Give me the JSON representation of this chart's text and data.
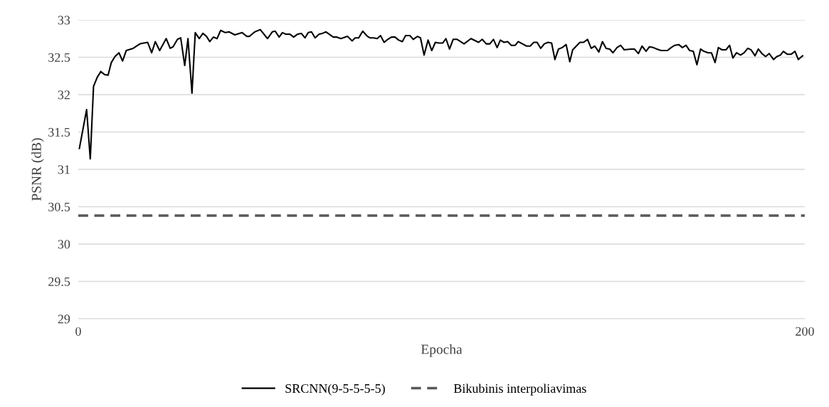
{
  "chart_data": {
    "type": "line",
    "xlabel": "Epocha",
    "ylabel": "PSNR (dB)",
    "xlim": [
      0,
      200
    ],
    "xticks": [
      0,
      200
    ],
    "ylim": [
      29,
      33
    ],
    "yticks": [
      29,
      29.5,
      30,
      30.5,
      31,
      31.5,
      32,
      32.5,
      33
    ],
    "grid": "y",
    "legend": "bottom",
    "line_style": "solid",
    "marker": "none",
    "series": [
      {
        "name": "SRCNN(9-5-5-5-5)",
        "color": "#000000",
        "x": [
          0.3,
          2.3,
          3.3,
          4.2,
          5.2,
          6.2,
          7.2,
          8.2,
          9.1,
          10.1,
          11.2,
          12.2,
          13.2,
          15.1,
          17.0,
          19.1,
          20.2,
          21.2,
          22.4,
          24.2,
          25.3,
          26.1,
          27.3,
          28.2,
          29.3,
          30.2,
          31.3,
          32.2,
          33.3,
          34.3,
          35.3,
          36.2,
          37.2,
          38.2,
          39.2,
          40.5,
          41.5,
          43.1,
          45.1,
          46.4,
          47.1,
          48.6,
          50.1,
          52.1,
          53.4,
          54.2,
          55.3,
          56.2,
          57.1,
          58.2,
          59.3,
          60.4,
          61.4,
          62.4,
          63.3,
          64.2,
          65.2,
          66.3,
          67.2,
          68.2,
          70.2,
          71.2,
          72.3,
          74.1,
          75.4,
          76.2,
          77.2,
          78.3,
          79.6,
          80.3,
          81.3,
          82.3,
          83.2,
          84.2,
          85.2,
          86.2,
          87.2,
          88.2,
          89.2,
          90.1,
          91.3,
          92.2,
          93.4,
          94.2,
          95.2,
          96.3,
          97.3,
          98.3,
          99.3,
          100.3,
          101.2,
          102.2,
          103.2,
          104.3,
          106.2,
          108.1,
          110.2,
          111.2,
          112.3,
          113.3,
          114.3,
          115.3,
          116.2,
          117.2,
          118.2,
          119.2,
          120.3,
          121.1,
          123.4,
          124.4,
          125.4,
          126.3,
          127.3,
          128.3,
          129.3,
          130.3,
          131.2,
          132.2,
          133.2,
          134.3,
          135.3,
          136.1,
          138.1,
          139.1,
          140.2,
          141.2,
          142.2,
          143.3,
          144.3,
          145.3,
          146.3,
          147.2,
          148.3,
          149.3,
          150.3,
          152.1,
          153.1,
          154.2,
          155.2,
          156.3,
          157.2,
          158.3,
          159.3,
          160.4,
          162.2,
          163.2,
          164.2,
          165.3,
          166.3,
          167.3,
          168.3,
          169.3,
          170.3,
          171.3,
          172.2,
          173.4,
          174.3,
          175.3,
          176.2,
          177.2,
          178.3,
          179.3,
          180.2,
          181.2,
          182.3,
          183.3,
          184.3,
          185.2,
          186.3,
          187.2,
          188.2,
          189.2,
          190.2,
          191.4,
          192.3,
          193.3,
          194.1,
          195.2,
          196.2,
          197.3,
          198.2,
          199.4
        ],
        "values": [
          31.28,
          31.8,
          31.14,
          32.11,
          32.23,
          32.31,
          32.27,
          32.26,
          32.43,
          32.51,
          32.56,
          32.45,
          32.59,
          32.62,
          32.68,
          32.7,
          32.56,
          32.71,
          32.59,
          32.75,
          32.62,
          32.64,
          32.74,
          32.76,
          32.39,
          32.75,
          32.02,
          32.83,
          32.75,
          32.82,
          32.78,
          32.71,
          32.77,
          32.75,
          32.86,
          32.83,
          32.84,
          32.8,
          32.83,
          32.78,
          32.78,
          32.84,
          32.87,
          32.75,
          32.84,
          32.85,
          32.77,
          32.83,
          32.81,
          32.81,
          32.77,
          32.81,
          32.82,
          32.76,
          32.83,
          32.84,
          32.76,
          32.81,
          32.82,
          32.84,
          32.77,
          32.77,
          32.75,
          32.78,
          32.72,
          32.76,
          32.76,
          32.85,
          32.78,
          32.76,
          32.76,
          32.75,
          32.79,
          32.7,
          32.74,
          32.77,
          32.77,
          32.73,
          32.71,
          32.79,
          32.79,
          32.74,
          32.78,
          32.76,
          32.53,
          32.73,
          32.59,
          32.7,
          32.69,
          32.69,
          32.75,
          32.61,
          32.74,
          32.74,
          32.68,
          32.75,
          32.7,
          32.74,
          32.68,
          32.68,
          32.74,
          32.63,
          32.73,
          32.7,
          32.71,
          32.66,
          32.66,
          32.71,
          32.65,
          32.65,
          32.7,
          32.7,
          32.62,
          32.68,
          32.7,
          32.69,
          32.47,
          32.61,
          32.63,
          32.67,
          32.44,
          32.6,
          32.7,
          32.7,
          32.74,
          32.62,
          32.65,
          32.57,
          32.71,
          32.62,
          32.61,
          32.56,
          32.63,
          32.66,
          32.6,
          32.61,
          32.61,
          32.55,
          32.65,
          32.58,
          32.64,
          32.63,
          32.61,
          32.59,
          32.59,
          32.63,
          32.66,
          32.67,
          32.63,
          32.66,
          32.59,
          32.58,
          32.4,
          32.61,
          32.58,
          32.56,
          32.56,
          32.43,
          32.63,
          32.6,
          32.6,
          32.66,
          32.49,
          32.56,
          32.53,
          32.56,
          32.62,
          32.6,
          32.52,
          32.61,
          32.55,
          32.51,
          32.55,
          32.47,
          32.51,
          32.53,
          32.58,
          32.54,
          32.54,
          32.58,
          32.47,
          32.52
        ]
      }
    ],
    "ref_lines": [
      {
        "axis": "y",
        "value": 30.38,
        "label": "Bikubinis interpoliavimas",
        "color": "#595959",
        "line_style": "dashed"
      }
    ]
  }
}
